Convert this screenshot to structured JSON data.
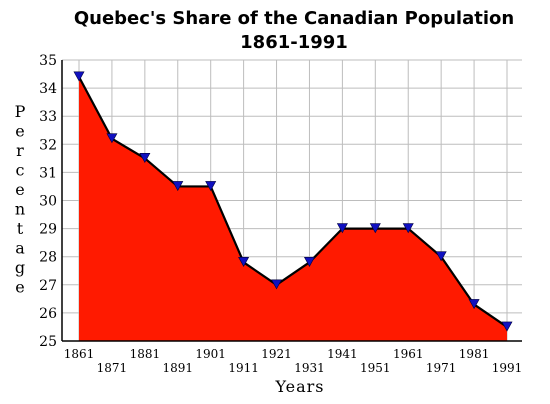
{
  "chart_data": {
    "type": "area",
    "title": "Quebec's Share of the Canadian Population",
    "subtitle": "1861-1991",
    "xlabel": "Years",
    "ylabel": "Percentage",
    "x": [
      1861,
      1871,
      1881,
      1891,
      1901,
      1911,
      1921,
      1931,
      1941,
      1951,
      1961,
      1971,
      1981,
      1991
    ],
    "values": [
      34.4,
      32.2,
      31.5,
      30.5,
      30.5,
      27.8,
      27.0,
      27.8,
      29.0,
      29.0,
      29.0,
      28.0,
      26.3,
      25.5
    ],
    "ylim": [
      25,
      35
    ],
    "yticks": [
      "25",
      "26",
      "27",
      "28",
      "29",
      "30",
      "31",
      "32",
      "33",
      "34",
      "35"
    ],
    "xticks_upper": [
      "1861",
      "1881",
      "1901",
      "1921",
      "1941",
      "1961",
      "1981"
    ],
    "xticks_lower": [
      "1871",
      "1891",
      "1911",
      "1931",
      "1951",
      "1971",
      "1991"
    ],
    "grid": true,
    "fill_color": "#ff1a00",
    "marker_color": "#1010c0",
    "line_color": "#000000"
  }
}
